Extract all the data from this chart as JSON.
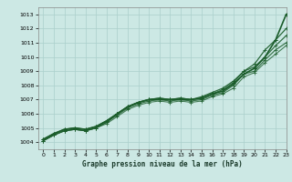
{
  "title": "Graphe pression niveau de la mer (hPa)",
  "xlim": [
    -0.5,
    23
  ],
  "ylim": [
    1003.5,
    1013.5
  ],
  "xtick_labels": [
    "0",
    "1",
    "2",
    "3",
    "4",
    "5",
    "6",
    "7",
    "8",
    "9",
    "10",
    "11",
    "12",
    "13",
    "14",
    "15",
    "16",
    "17",
    "18",
    "19",
    "20",
    "21",
    "22",
    "23"
  ],
  "xticks": [
    0,
    1,
    2,
    3,
    4,
    5,
    6,
    7,
    8,
    9,
    10,
    11,
    12,
    13,
    14,
    15,
    16,
    17,
    18,
    19,
    20,
    21,
    22,
    23
  ],
  "yticks": [
    1004,
    1005,
    1006,
    1007,
    1008,
    1009,
    1010,
    1011,
    1012,
    1013
  ],
  "bg_color": "#cce8e4",
  "grid_color": "#aacfcb",
  "line_color": "#1a5c2a",
  "series": [
    [
      1004.2,
      1004.6,
      1004.9,
      1005.0,
      1004.9,
      1005.1,
      1005.5,
      1006.0,
      1006.5,
      1006.8,
      1007.0,
      1007.0,
      1007.0,
      1007.0,
      1007.0,
      1007.1,
      1007.4,
      1007.6,
      1008.1,
      1008.8,
      1009.2,
      1010.0,
      1011.2,
      1013.0
    ],
    [
      1004.2,
      1004.6,
      1004.9,
      1005.0,
      1004.9,
      1005.1,
      1005.5,
      1006.0,
      1006.5,
      1006.8,
      1007.0,
      1007.1,
      1007.0,
      1007.1,
      1007.0,
      1007.2,
      1007.5,
      1007.8,
      1008.3,
      1009.0,
      1009.5,
      1010.5,
      1011.2,
      1012.0
    ],
    [
      1004.1,
      1004.5,
      1004.8,
      1004.9,
      1004.8,
      1005.0,
      1005.4,
      1006.0,
      1006.5,
      1006.8,
      1007.0,
      1007.1,
      1007.0,
      1007.1,
      1007.0,
      1007.1,
      1007.4,
      1007.7,
      1008.2,
      1009.0,
      1009.3,
      1010.0,
      1010.8,
      1011.5
    ],
    [
      1004.1,
      1004.5,
      1004.8,
      1004.9,
      1004.8,
      1005.0,
      1005.4,
      1005.9,
      1006.4,
      1006.7,
      1006.9,
      1007.0,
      1006.9,
      1007.0,
      1006.9,
      1007.0,
      1007.3,
      1007.5,
      1008.0,
      1008.8,
      1009.0,
      1009.8,
      1010.5,
      1011.0
    ],
    [
      1004.1,
      1004.5,
      1004.8,
      1004.9,
      1004.8,
      1005.0,
      1005.3,
      1005.8,
      1006.3,
      1006.6,
      1006.8,
      1006.9,
      1006.8,
      1006.9,
      1006.8,
      1006.9,
      1007.2,
      1007.4,
      1007.8,
      1008.6,
      1008.9,
      1009.6,
      1010.2,
      1010.8
    ]
  ]
}
